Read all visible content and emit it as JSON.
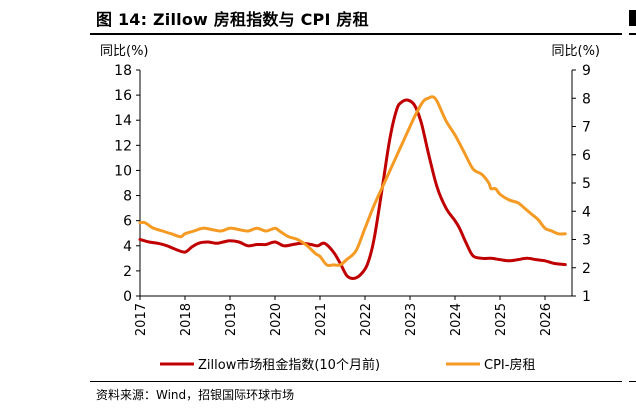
{
  "figure": {
    "title": "图 14: Zillow 房租指数与 CPI 房租",
    "source": "资料来源：Wind，招银国际环球市场"
  },
  "chart_data": {
    "type": "line",
    "left_axis": {
      "label": "同比(%)",
      "range": [
        0,
        18
      ],
      "ticks": [
        "0",
        "2",
        "4",
        "6",
        "8",
        "10",
        "12",
        "14",
        "16",
        "18"
      ]
    },
    "right_axis": {
      "label": "同比(%)",
      "range": [
        1,
        9
      ],
      "ticks": [
        "1",
        "2",
        "3",
        "4",
        "5",
        "6",
        "7",
        "8",
        "9"
      ]
    },
    "x_axis": {
      "range": [
        2017,
        2026.6
      ],
      "ticks": [
        "2017",
        "2018",
        "2019",
        "2020",
        "2021",
        "2022",
        "2023",
        "2024",
        "2025",
        "2026"
      ]
    },
    "grid": false,
    "legend": "bottom",
    "colors": {
      "zillow": "#c00000",
      "cpi": "#f59a23"
    },
    "series": [
      {
        "name": "Zillow市场租金指数(10个月前)",
        "axis": "left",
        "x": [
          2017.0,
          2017.2,
          2017.4,
          2017.6,
          2017.8,
          2018.0,
          2018.15,
          2018.3,
          2018.5,
          2018.7,
          2018.85,
          2019.0,
          2019.2,
          2019.4,
          2019.6,
          2019.8,
          2020.0,
          2020.2,
          2020.4,
          2020.6,
          2020.8,
          2020.95,
          2021.1,
          2021.3,
          2021.45,
          2021.6,
          2021.75,
          2021.9,
          2022.05,
          2022.2,
          2022.4,
          2022.55,
          2022.7,
          2022.8,
          2022.95,
          2023.1,
          2023.25,
          2023.4,
          2023.6,
          2023.8,
          2024.0,
          2024.1,
          2024.25,
          2024.4,
          2024.6,
          2024.8,
          2025.0,
          2025.2,
          2025.4,
          2025.6,
          2025.8,
          2026.0,
          2026.2,
          2026.45
        ],
        "values": [
          4.5,
          4.3,
          4.2,
          4.0,
          3.7,
          3.5,
          3.9,
          4.2,
          4.3,
          4.2,
          4.3,
          4.4,
          4.3,
          4.0,
          4.1,
          4.1,
          4.3,
          4.0,
          4.1,
          4.2,
          4.1,
          4.0,
          4.2,
          3.5,
          2.6,
          1.6,
          1.4,
          1.7,
          2.5,
          4.5,
          9.0,
          12.5,
          14.8,
          15.4,
          15.6,
          15.2,
          13.8,
          11.5,
          8.7,
          7.0,
          6.0,
          5.4,
          4.2,
          3.2,
          3.0,
          3.0,
          2.9,
          2.8,
          2.9,
          3.0,
          2.9,
          2.8,
          2.6,
          2.5
        ]
      },
      {
        "name": "CPI-房租",
        "axis": "right",
        "x": [
          2017.0,
          2017.1,
          2017.2,
          2017.3,
          2017.5,
          2017.7,
          2017.9,
          2018.0,
          2018.2,
          2018.4,
          2018.6,
          2018.8,
          2019.0,
          2019.2,
          2019.4,
          2019.6,
          2019.8,
          2020.0,
          2020.1,
          2020.3,
          2020.5,
          2020.7,
          2020.9,
          2021.0,
          2021.15,
          2021.3,
          2021.45,
          2021.6,
          2021.8,
          2022.0,
          2022.2,
          2022.4,
          2022.6,
          2022.8,
          2023.0,
          2023.15,
          2023.3,
          2023.4,
          2023.5,
          2023.6,
          2023.8,
          2024.0,
          2024.2,
          2024.4,
          2024.6,
          2024.75,
          2024.8,
          2024.9,
          2025.0,
          2025.2,
          2025.4,
          2025.55,
          2025.7,
          2025.85,
          2026.0,
          2026.15,
          2026.3,
          2026.45
        ],
        "values": [
          3.6,
          3.6,
          3.5,
          3.4,
          3.3,
          3.2,
          3.1,
          3.2,
          3.3,
          3.4,
          3.35,
          3.3,
          3.4,
          3.35,
          3.3,
          3.4,
          3.3,
          3.4,
          3.3,
          3.1,
          3.0,
          2.8,
          2.5,
          2.4,
          2.1,
          2.1,
          2.1,
          2.3,
          2.6,
          3.4,
          4.2,
          4.9,
          5.6,
          6.3,
          7.0,
          7.5,
          7.9,
          8.0,
          8.05,
          7.9,
          7.2,
          6.7,
          6.1,
          5.5,
          5.3,
          5.0,
          4.8,
          4.8,
          4.6,
          4.4,
          4.3,
          4.1,
          3.9,
          3.7,
          3.4,
          3.3,
          3.2,
          3.2
        ]
      }
    ]
  }
}
